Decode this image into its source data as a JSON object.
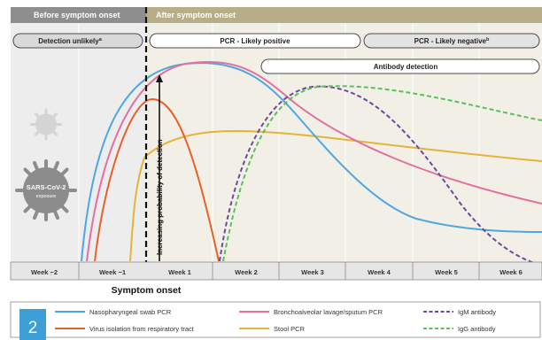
{
  "colors": {
    "before_bg": "#ededed",
    "after_bg": "#f2f0e6",
    "before_header": "#8e8e8e",
    "after_header": "#b7ae88",
    "nasopharyngeal": "#4da7e3",
    "isolation": "#e8602a",
    "bal": "#e470a0",
    "stool": "#e8b23a",
    "igm": "#6a4aa0",
    "igg": "#5cbf5a",
    "number_badge": "#3d9fd6"
  },
  "header": {
    "before": "Before symptom onset",
    "after": "After symptom onset"
  },
  "pills": {
    "detection_unlikely": "Detection unlikely",
    "detection_unlikely_sup": "a",
    "pcr_positive": "PCR - Likely positive",
    "pcr_negative": "PCR - Likely negative",
    "pcr_negative_sup": "b",
    "antibody": "Antibody detection"
  },
  "virus": {
    "label_line1": "SARS-CoV-2",
    "label_line2": "exposure"
  },
  "axis_label": "Increasing probability of detection",
  "weeks": [
    "Week −2",
    "Week −1",
    "Week 1",
    "Week 2",
    "Week 3",
    "Week 4",
    "Week 5",
    "Week 6"
  ],
  "onset_label": "Symptom onset",
  "legend": [
    {
      "label": "Nasopharyngeal swab PCR",
      "color": "#4da7e3",
      "dashed": false
    },
    {
      "label": "Bronchoalveolar lavage/sputum PCR",
      "color": "#e470a0",
      "dashed": false
    },
    {
      "label": "IgM antibody",
      "color": "#6a4aa0",
      "dashed": true
    },
    {
      "label": "Virus isolation from respiratory tract",
      "color": "#e8602a",
      "dashed": false
    },
    {
      "label": "Stool PCR",
      "color": "#e8b23a",
      "dashed": false
    },
    {
      "label": "IgG antibody",
      "color": "#5cbf5a",
      "dashed": true
    }
  ],
  "figure_number": "2"
}
